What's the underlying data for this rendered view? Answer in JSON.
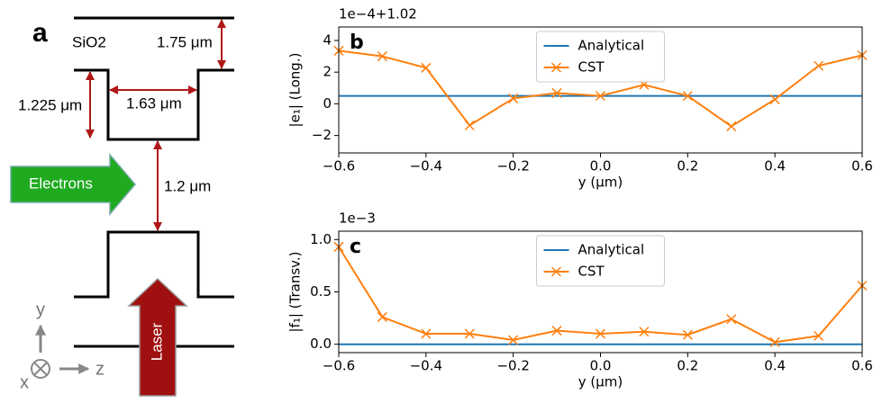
{
  "diagram": {
    "panel": "a",
    "material": "SiO2",
    "gap_top": "1.75 μm",
    "depth": "1.225 μm",
    "width": "1.63 μm",
    "gap": "1.2 μm",
    "beam": "Electrons",
    "drive": "Laser",
    "axis_y": "y",
    "axis_x": "x",
    "axis_z": "z"
  },
  "chart_data": [
    {
      "type": "line",
      "panel": "b",
      "offset": "1e−4+1.02",
      "ylabel": "|e₁| (Long.)",
      "xlabel": "y (μm)",
      "legend": "upper center",
      "x": [
        -0.6,
        -0.5,
        -0.4,
        -0.3,
        -0.2,
        -0.1,
        0.0,
        0.1,
        0.2,
        0.3,
        0.4,
        0.5,
        0.6
      ],
      "xlim": [
        -0.6,
        0.6
      ],
      "xticks": [
        {
          "value": -0.6,
          "label": "−0.6"
        },
        {
          "value": -0.4,
          "label": "−0.4"
        },
        {
          "value": -0.2,
          "label": "−0.2"
        },
        {
          "value": 0,
          "label": "0.0"
        },
        {
          "value": 0.2,
          "label": "0.2"
        },
        {
          "value": 0.4,
          "label": "0.4"
        },
        {
          "value": 0.6,
          "label": "0.6"
        }
      ],
      "ylim": [
        -3.1,
        4.85
      ],
      "yticks": [
        {
          "value": -2,
          "label": "−2"
        },
        0,
        2,
        4
      ],
      "series": [
        {
          "name": "Analytical",
          "color": "#1f77b4",
          "marker": "none",
          "values": [
            0.5,
            0.5,
            0.5,
            0.5,
            0.5,
            0.5,
            0.5,
            0.5,
            0.5,
            0.5,
            0.5,
            0.5,
            0.5
          ]
        },
        {
          "name": "CST",
          "color": "#ff7f0e",
          "marker": "x",
          "values": [
            3.35,
            3.0,
            2.27,
            -1.36,
            0.34,
            0.68,
            0.5,
            1.2,
            0.5,
            -1.42,
            0.28,
            2.4,
            3.07
          ]
        }
      ]
    },
    {
      "type": "line",
      "panel": "c",
      "offset": "1e−3",
      "ylabel": "|f₁| (Transv.)",
      "xlabel": "y (μm)",
      "legend": "upper center",
      "x": [
        -0.6,
        -0.5,
        -0.4,
        -0.3,
        -0.2,
        -0.1,
        0.0,
        0.1,
        0.2,
        0.3,
        0.4,
        0.5,
        0.6
      ],
      "xlim": [
        -0.6,
        0.6
      ],
      "xticks": [
        {
          "value": -0.6,
          "label": "−0.6"
        },
        {
          "value": -0.4,
          "label": "−0.4"
        },
        {
          "value": -0.2,
          "label": "−0.2"
        },
        {
          "value": 0,
          "label": "0.0"
        },
        {
          "value": 0.2,
          "label": "0.2"
        },
        {
          "value": 0.4,
          "label": "0.4"
        },
        {
          "value": 0.6,
          "label": "0.6"
        }
      ],
      "ylim": [
        -0.08,
        1.08
      ],
      "yticks": [
        {
          "value": 0,
          "label": "0.0"
        },
        {
          "value": 0.5,
          "label": "0.5"
        },
        {
          "value": 1,
          "label": "1.0"
        }
      ],
      "series": [
        {
          "name": "Analytical",
          "color": "#1f77b4",
          "marker": "none",
          "values": [
            0,
            0,
            0,
            0,
            0,
            0,
            0,
            0,
            0,
            0,
            0,
            0,
            0
          ]
        },
        {
          "name": "CST",
          "color": "#ff7f0e",
          "marker": "x",
          "values": [
            0.93,
            0.26,
            0.1,
            0.1,
            0.04,
            0.13,
            0.1,
            0.12,
            0.09,
            0.24,
            0.02,
            0.08,
            0.56
          ]
        }
      ]
    }
  ]
}
